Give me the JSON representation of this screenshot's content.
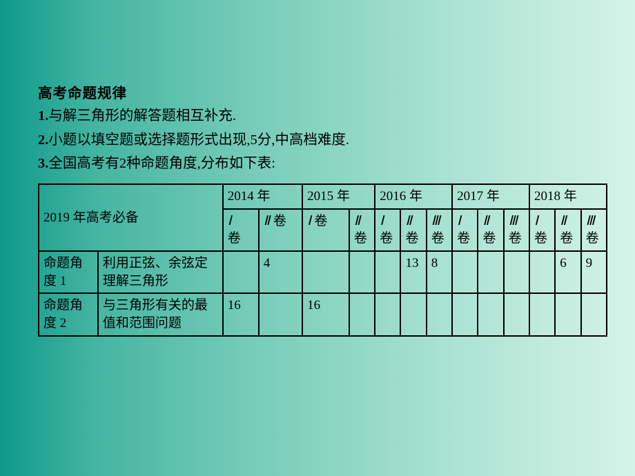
{
  "heading": "高考命题规律",
  "lines": {
    "l1_num": "1.",
    "l1": "与解三角形的解答题相互补充.",
    "l2_num": "2.",
    "l2": "小题以填空题或选择题形式出现,5分,中高档难度.",
    "l3_num": "3.",
    "l3": "全国高考有2种命题角度,分布如下表:"
  },
  "table": {
    "topLeft": "2019 年高考必备",
    "years": [
      "2014 年",
      "2015 年",
      "2016 年",
      "2017 年",
      "2018 年"
    ],
    "vols": {
      "y2014": [
        "Ⅰ卷",
        "Ⅱ 卷"
      ],
      "y2015": [
        "Ⅰ 卷",
        "Ⅱ卷"
      ],
      "y2016": [
        "Ⅰ卷",
        "Ⅱ卷",
        "Ⅲ卷"
      ],
      "y2017": [
        "Ⅰ卷",
        "Ⅱ卷",
        "Ⅲ卷"
      ],
      "y2018": [
        "Ⅰ卷",
        "Ⅱ卷",
        "Ⅲ卷"
      ]
    },
    "rows": [
      {
        "cat": "命题角度 1",
        "desc": "利用正弦、余弦定理解三角形",
        "cells": [
          "",
          "4",
          "",
          "",
          "",
          "13",
          "8",
          "",
          "",
          "",
          "",
          "6",
          "9"
        ]
      },
      {
        "cat": "命题角度 2",
        "desc": "与三角形有关的最值和范围问题",
        "cells": [
          "16",
          "",
          "16",
          "",
          "",
          "",
          "",
          "",
          "",
          "",
          "",
          "",
          ""
        ]
      }
    ]
  },
  "colors": {
    "border": "#000000",
    "text": "#000000",
    "bgFrom": "#0d998a",
    "bgTo": "#d5f3e8"
  }
}
